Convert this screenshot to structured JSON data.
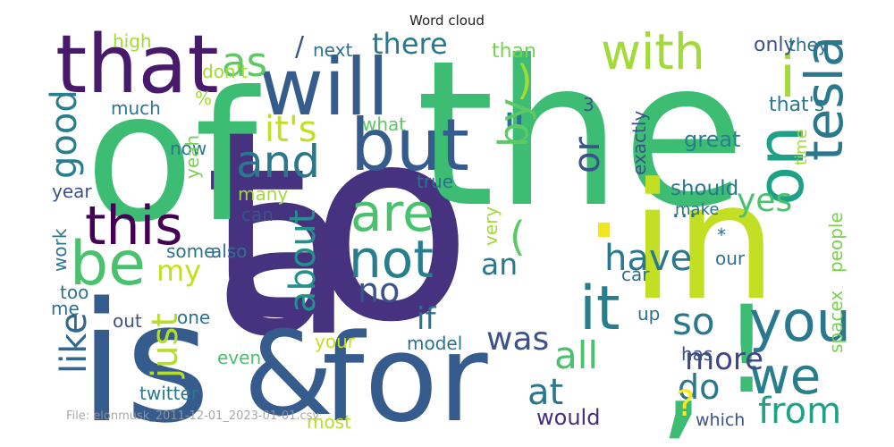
{
  "chart_data": {
    "type": "wordcloud",
    "title": "Word cloud",
    "caption": "File: elonmusk_2011-12-01_2023-01-01.csv",
    "words": [
      {
        "text": "to",
        "color": "#46327e"
      },
      {
        "text": "the",
        "color": "#3dbc74"
      },
      {
        "text": "of",
        "color": "#3dbc74"
      },
      {
        "text": "a",
        "color": "#46327e"
      },
      {
        "text": "is",
        "color": "#365c8d"
      },
      {
        "text": "&",
        "color": "#365c8d"
      },
      {
        "text": "for",
        "color": "#365c8d"
      },
      {
        "text": "in",
        "color": "#c2df23"
      },
      {
        "text": ".",
        "color": "#f0e51f"
      },
      {
        "text": ",",
        "color": "#3dbc74"
      },
      {
        "text": "!",
        "color": "#3dbc74"
      },
      {
        "text": "that",
        "color": "#481a6c"
      },
      {
        "text": "will",
        "color": "#365c8d"
      },
      {
        "text": "but",
        "color": "#365c8d"
      },
      {
        "text": "with",
        "color": "#a2da37"
      },
      {
        "text": "on",
        "color": "#1fa187"
      },
      {
        "text": "tesla",
        "color": "#2a788e"
      },
      {
        "text": "i",
        "color": "#a2da37"
      },
      {
        "text": "be",
        "color": "#4ac16d"
      },
      {
        "text": "this",
        "color": "#440154"
      },
      {
        "text": "it",
        "color": "#277f8e"
      },
      {
        "text": "and",
        "color": "#2a788e"
      },
      {
        "text": "are",
        "color": "#4ac16d"
      },
      {
        "text": "not",
        "color": "#277f8e"
      },
      {
        "text": "you",
        "color": "#2a788e"
      },
      {
        "text": "so",
        "color": "#2a788e"
      },
      {
        "text": "we",
        "color": "#277f8e"
      },
      {
        "text": "\"",
        "color": "#2c728e"
      },
      {
        "text": "by",
        "color": "#5ec962"
      },
      {
        "text": "as",
        "color": "#5ec962"
      },
      {
        "text": "/",
        "color": "#3b528b"
      },
      {
        "text": ")",
        "color": "#a2da37"
      },
      {
        "text": "it's",
        "color": "#c2df23"
      },
      {
        "text": "there",
        "color": "#2a788e"
      },
      {
        "text": "good",
        "color": "#277f8e"
      },
      {
        "text": "or",
        "color": "#3b528b"
      },
      {
        "text": "about",
        "color": "#21918c"
      },
      {
        "text": "have",
        "color": "#2a788e"
      },
      {
        "text": "(",
        "color": "#5ec962"
      },
      {
        "text": "an",
        "color": "#2a788e"
      },
      {
        "text": "no",
        "color": "#3b528b"
      },
      {
        "text": "my",
        "color": "#c2df23"
      },
      {
        "text": "just",
        "color": "#b5de2b"
      },
      {
        "text": "like",
        "color": "#31688e"
      },
      {
        "text": "if",
        "color": "#2c728e"
      },
      {
        "text": "was",
        "color": "#3b528b"
      },
      {
        "text": "all",
        "color": "#4ac16d"
      },
      {
        "text": "at",
        "color": "#2a788e"
      },
      {
        "text": "more",
        "color": "#414487"
      },
      {
        "text": "do",
        "color": "#2a788e"
      },
      {
        "text": "from",
        "color": "#1fa187"
      },
      {
        "text": "yes",
        "color": "#4ac16d"
      },
      {
        "text": "great",
        "color": "#277f8e"
      },
      {
        "text": "should",
        "color": "#2a788e"
      },
      {
        "text": "?",
        "color": "#fde725"
      },
      {
        "text": "would",
        "color": "#472d7b"
      },
      {
        "text": "which",
        "color": "#3b528b"
      },
      {
        "text": "twitter",
        "color": "#2a788e"
      },
      {
        "text": "even",
        "color": "#4ac16d"
      },
      {
        "text": "model",
        "color": "#2c728e"
      },
      {
        "text": "your",
        "color": "#c2df23"
      },
      {
        "text": "one",
        "color": "#2c728e"
      },
      {
        "text": "out",
        "color": "#3b528b"
      },
      {
        "text": "most",
        "color": "#b5de2b"
      },
      {
        "text": "has",
        "color": "#3b528b"
      },
      {
        "text": "spacex",
        "color": "#7ad151"
      },
      {
        "text": "people",
        "color": "#7ad151"
      },
      {
        "text": "our",
        "color": "#2c728e"
      },
      {
        "text": "car",
        "color": "#2c728e"
      },
      {
        "text": "up",
        "color": "#2c728e"
      },
      {
        "text": "*",
        "color": "#2c728e"
      },
      {
        "text": "...",
        "color": "#2c728e"
      },
      {
        "text": "make",
        "color": "#2c728e"
      },
      {
        "text": "that's",
        "color": "#2a788e"
      },
      {
        "text": "time",
        "color": "#a2da37"
      },
      {
        "text": "only",
        "color": "#3b528b"
      },
      {
        "text": "they",
        "color": "#2c728e"
      },
      {
        "text": "than",
        "color": "#7ad151"
      },
      {
        "text": "next",
        "color": "#2c728e"
      },
      {
        "text": "high",
        "color": "#a2da37"
      },
      {
        "text": "don't",
        "color": "#a2da37"
      },
      {
        "text": "%",
        "color": "#a2da37"
      },
      {
        "text": "much",
        "color": "#2a788e"
      },
      {
        "text": "year",
        "color": "#3b528b"
      },
      {
        "text": "what",
        "color": "#5ec962"
      },
      {
        "text": "now",
        "color": "#2a788e"
      },
      {
        "text": "yeah",
        "color": "#7ad151"
      },
      {
        "text": "3",
        "color": "#3b528b"
      },
      {
        "text": "exactly",
        "color": "#3b528b"
      },
      {
        "text": "true",
        "color": "#2c728e"
      },
      {
        "text": "many",
        "color": "#a2da37"
      },
      {
        "text": "can",
        "color": "#3b528b"
      },
      {
        "text": "very",
        "color": "#a2da37"
      },
      {
        "text": "some",
        "color": "#2c728e"
      },
      {
        "text": "also",
        "color": "#2c728e"
      },
      {
        "text": "work",
        "color": "#2a788e"
      },
      {
        "text": "too",
        "color": "#2c728e"
      },
      {
        "text": "me",
        "color": "#2c728e"
      }
    ]
  }
}
